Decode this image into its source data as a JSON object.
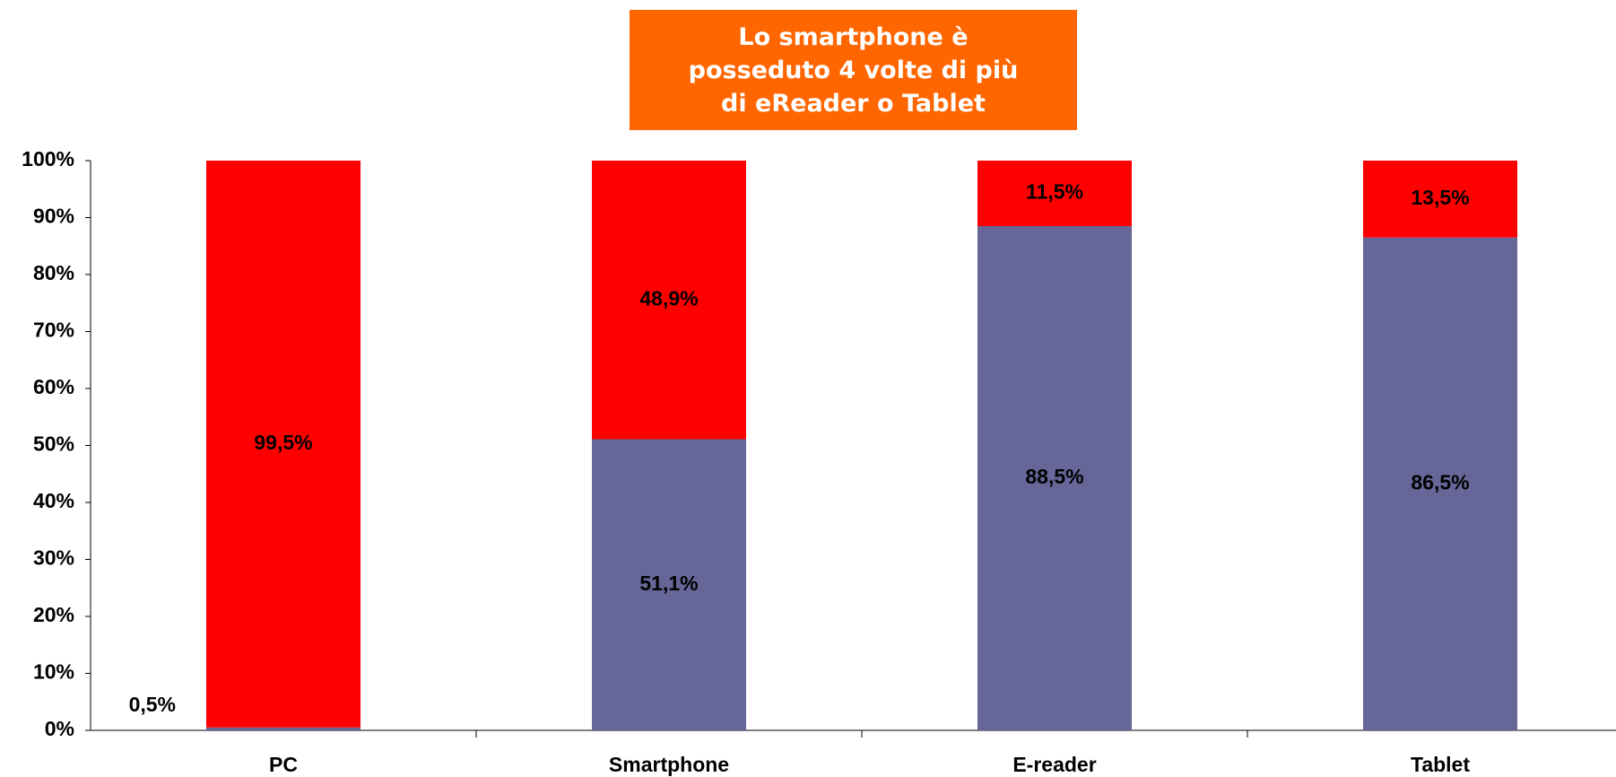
{
  "chart_data": {
    "type": "stacked-bar",
    "title": "Lo smartphone è\nposseduto 4 volte di più\ndi eReader o Tablet",
    "categories": [
      "PC",
      "Smartphone",
      "E-reader",
      "Tablet"
    ],
    "series": [
      {
        "color": "#666699",
        "values": [
          0.5,
          51.1,
          88.5,
          86.5
        ],
        "value_labels": [
          "0,5%",
          "51,1%",
          "88,5%",
          "86,5%"
        ]
      },
      {
        "color": "#ff0000",
        "values": [
          99.5,
          48.9,
          11.5,
          13.5
        ],
        "value_labels": [
          "99,5%",
          "48,9%",
          "11,5%",
          "13,5%"
        ]
      }
    ],
    "ylim": [
      0,
      100
    ],
    "yticks": [
      {
        "value": 0,
        "label": "0%"
      },
      {
        "value": 10,
        "label": "10%"
      },
      {
        "value": 20,
        "label": "20%"
      },
      {
        "value": 30,
        "label": "30%"
      },
      {
        "value": 40,
        "label": "40%"
      },
      {
        "value": 50,
        "label": "50%"
      },
      {
        "value": 60,
        "label": "60%"
      },
      {
        "value": 70,
        "label": "70%"
      },
      {
        "value": 80,
        "label": "80%"
      },
      {
        "value": 90,
        "label": "90%"
      },
      {
        "value": 100,
        "label": "100%"
      }
    ]
  }
}
